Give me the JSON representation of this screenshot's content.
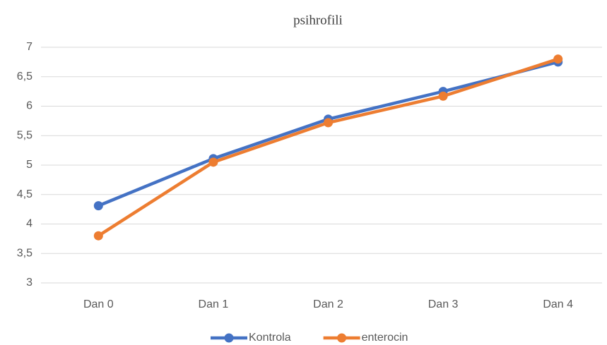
{
  "chart_data": {
    "type": "line",
    "title": "psihrofili",
    "categories": [
      "Dan 0",
      "Dan 1",
      "Dan 2",
      "Dan 3",
      "Dan 4"
    ],
    "series": [
      {
        "name": "Kontrola",
        "color": "#4472c4",
        "values": [
          4.31,
          5.11,
          5.78,
          6.25,
          6.75
        ]
      },
      {
        "name": "enterocin",
        "color": "#ed7d31",
        "values": [
          3.8,
          5.05,
          5.72,
          6.17,
          6.8
        ]
      }
    ],
    "ylim": [
      3,
      7
    ],
    "yticks": [
      3,
      {
        "value": 3.5,
        "label": "3,5"
      },
      4,
      {
        "value": 4.5,
        "label": "4,5"
      },
      5,
      {
        "value": 5.5,
        "label": "5,5"
      },
      6,
      {
        "value": 6.5,
        "label": "6,5"
      },
      7
    ],
    "grid": true,
    "legend": "bottom"
  }
}
